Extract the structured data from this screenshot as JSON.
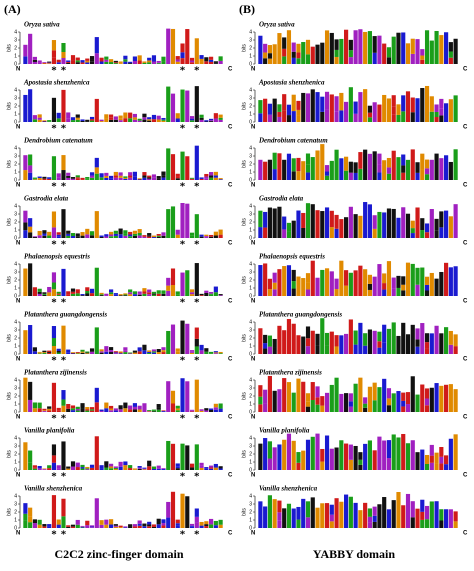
{
  "panels": [
    {
      "label": "(A)",
      "title": "C2C2 zinc-finger domain",
      "axis_label": "bits",
      "yticks": [
        0,
        1,
        2,
        3,
        4
      ],
      "start": "N",
      "end": "C",
      "marker": "*",
      "species": [
        "Oryza sativa",
        "Apostasia shenzhenica",
        "Dendrobium catenatum",
        "Gastrodia elata",
        "Phalaenopsis equestris",
        "Platanthera guangdongensis",
        "Platanthera zijinensis",
        "Vanilla planifolia",
        "Vanilla shenzhenica"
      ]
    },
    {
      "label": "(B)",
      "title": "YABBY domain",
      "axis_label": "bits",
      "yticks": [
        0,
        1,
        2,
        3,
        4
      ],
      "start": "N",
      "end": "C",
      "species": [
        "Oryza sativa",
        "Apostasia shenzhenica",
        "Dendrobium catenatum",
        "Gastrodia elata",
        "Phalaenopsis equestris",
        "Platanthera guangdongensis",
        "Platanthera zijinensis",
        "Vanilla planifolia",
        "Vanilla shenzhenica"
      ]
    }
  ]
}
